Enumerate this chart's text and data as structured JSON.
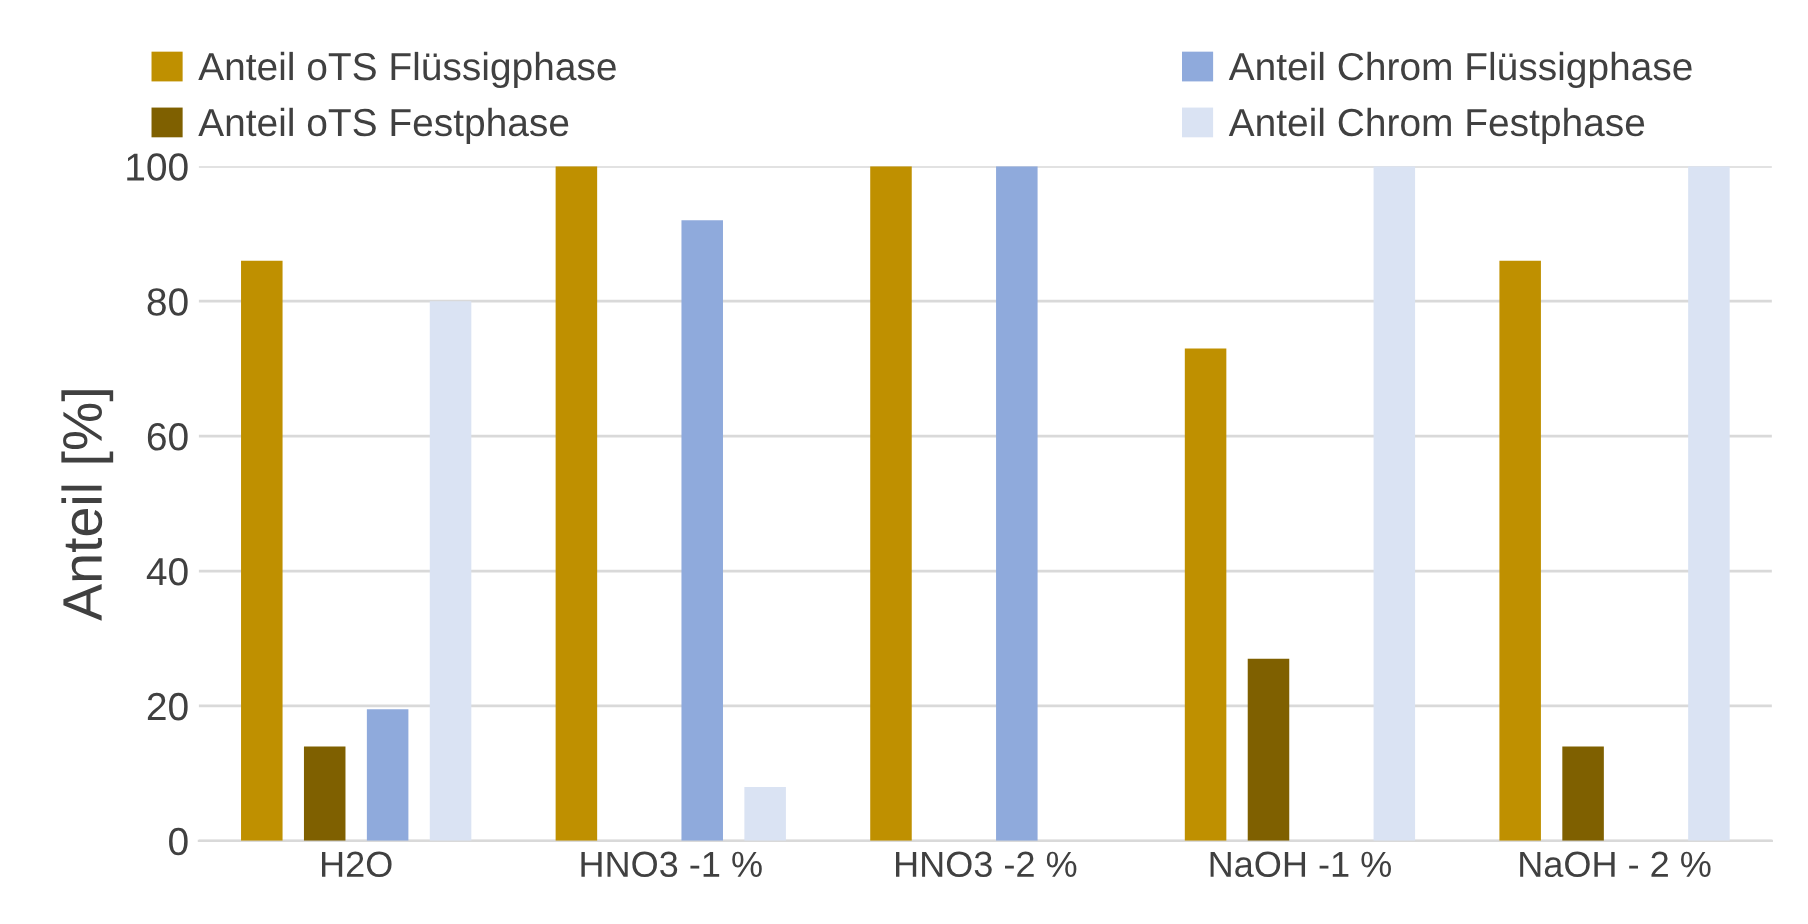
{
  "chart_data": {
    "type": "bar",
    "ylabel": "Anteil [%]",
    "categories": [
      "H2O",
      "HNO3 -1 %",
      "HNO3 -2 %",
      "NaOH -1 %",
      "NaOH - 2 %"
    ],
    "series": [
      {
        "name": "Anteil oTS Flüssigphase",
        "color": "#bf9000",
        "values": [
          86,
          100,
          100,
          73,
          86
        ]
      },
      {
        "name": "Anteil oTS Festphase",
        "color": "#7f6000",
        "values": [
          14,
          0,
          0,
          27,
          14
        ]
      },
      {
        "name": "Anteil Chrom Flüssigphase",
        "color": "#8faadc",
        "values": [
          19.5,
          92,
          100,
          0,
          0
        ]
      },
      {
        "name": "Anteil Chrom Festphase",
        "color": "#dae3f3",
        "values": [
          80,
          8,
          0,
          100,
          100
        ]
      }
    ],
    "ylim": [
      0,
      100
    ],
    "yticks": [
      0,
      20,
      40,
      60,
      80,
      100
    ],
    "grid": "y",
    "legend": "top"
  }
}
